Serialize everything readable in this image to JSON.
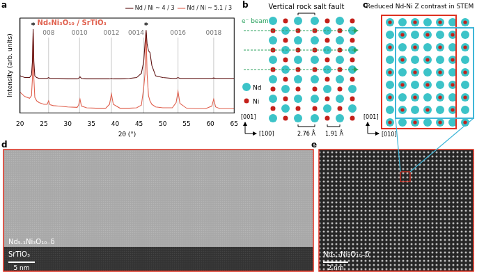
{
  "chart_data": {
    "type": "line",
    "title": "Nd₄Ni₃O₁₀ / SrTiO₃",
    "x_label": "2θ (°)",
    "y_label": "Intensity (arb. units)",
    "x": [
      20,
      21,
      22,
      22.4,
      22.6,
      22.75,
      22.9,
      23.1,
      23.5,
      24,
      25,
      25.7,
      26.0,
      26.3,
      27,
      28,
      30,
      32,
      32.3,
      32.6,
      32.9,
      34,
      36,
      38,
      38.8,
      39.2,
      39.6,
      41,
      43,
      44.5,
      45.5,
      46.0,
      46.25,
      46.5,
      46.7,
      47.0,
      47.3,
      47.7,
      48.5,
      50,
      52,
      52.8,
      53.2,
      53.6,
      55,
      57,
      59,
      60.3,
      60.7,
      61.1,
      62,
      63.5,
      65
    ],
    "series": [
      {
        "name": "Nd / Ni ~ 4 / 3",
        "color": "#5c0f0f",
        "values": [
          43,
          41,
          41,
          44,
          60,
          97,
          60,
          43,
          41,
          40,
          40,
          40,
          41,
          40,
          40,
          40,
          39.5,
          39.5,
          40,
          42,
          40,
          39.5,
          39.5,
          39.5,
          39.5,
          40,
          39.5,
          39.5,
          40,
          41,
          46,
          60,
          80,
          96,
          80,
          72,
          70,
          55,
          43,
          41,
          40,
          40,
          41,
          40,
          40,
          40,
          40,
          40,
          40.5,
          40,
          40,
          40,
          40
        ]
      },
      {
        "name": "Nd / Ni ~ 5.1 / 3",
        "color": "#e0604e",
        "values": [
          24,
          19,
          17,
          20,
          40,
          93,
          40,
          18,
          14,
          12,
          10,
          10,
          14,
          9.5,
          8.5,
          8,
          7,
          6.5,
          9,
          16,
          8,
          6,
          5.5,
          5.5,
          10,
          22,
          10,
          5.5,
          5.5,
          6,
          9,
          30,
          45,
          93,
          45,
          20,
          14,
          10,
          7,
          6,
          6,
          12,
          25,
          11,
          5.5,
          5,
          5,
          8,
          16,
          7,
          5,
          5,
          5
        ]
      }
    ],
    "xlim": [
      20,
      65
    ],
    "xticks": [
      20,
      25,
      30,
      35,
      40,
      45,
      50,
      55,
      60,
      65
    ],
    "ylim": [
      0,
      110
    ],
    "tick_labels": "x",
    "grid": false,
    "legend": "upper right",
    "annotations": [
      {
        "x": 26.0,
        "label": "008"
      },
      {
        "x": 32.5,
        "label": "0010"
      },
      {
        "x": 39.2,
        "label": "0012"
      },
      {
        "x": 46.0,
        "label": "0014"
      },
      {
        "x": 53.2,
        "label": "0016"
      },
      {
        "x": 60.7,
        "label": "0018"
      }
    ],
    "substrate_peaks": [
      {
        "x": 22.75,
        "label": "*"
      },
      {
        "x": 46.5,
        "label": "*"
      }
    ]
  },
  "panel_labels": [
    "a",
    "b",
    "c",
    "d",
    "e"
  ],
  "panels": {
    "b": {
      "title": "Vertical rock salt fault",
      "beam_label": "e⁻ beam",
      "legend": [
        {
          "label": "Nd",
          "color": "#3cc3c8"
        },
        {
          "label": "Ni",
          "color": "#c4201a"
        }
      ],
      "axes": {
        "vertical": "[001]",
        "horizontal": "[100]"
      },
      "distances": [
        "2.76 Å",
        "1.91 Å"
      ]
    },
    "c": {
      "title": "Reduced Nd-Ni Z contrast in STEM",
      "axes": {
        "vertical": "[001]",
        "horizontal": "[010]"
      }
    },
    "d": {
      "film_label": "Nd₅.₁Ni₃O₁₀₋δ",
      "substrate_label": "SrTiO₃",
      "scale_bar": "5 nm"
    },
    "e": {
      "film_label": "Nd₅.₁Ni₃O₁₀₋δ",
      "scale_bar": "2 nm"
    }
  }
}
